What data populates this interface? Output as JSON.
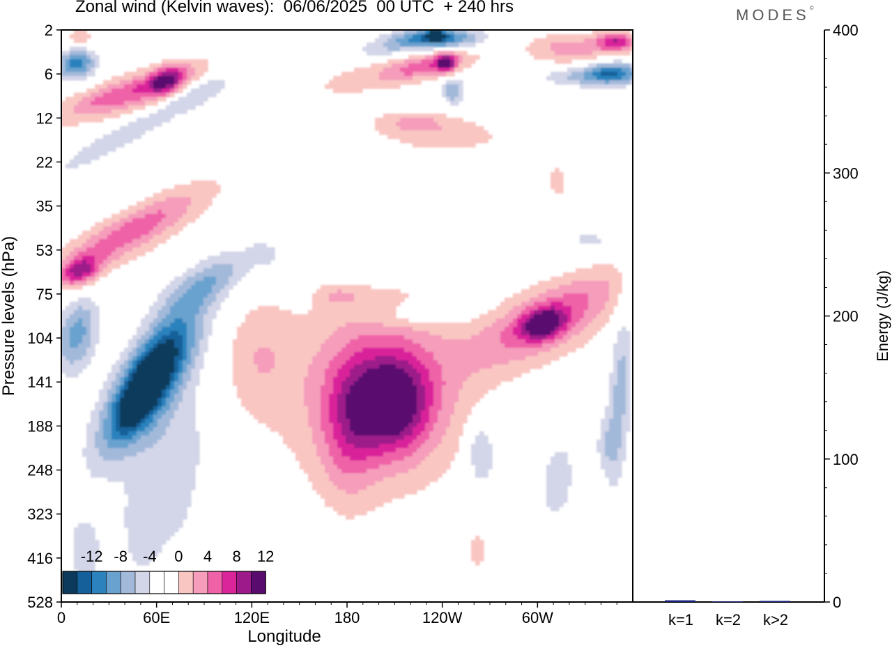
{
  "header": {
    "title": "Zonal wind (Kelvin waves):  06/06/2025  00 UTC  + 240 hrs",
    "brand": "MODES",
    "brand_mark": "©"
  },
  "colorbar": {
    "labels": [
      "-12",
      "-8",
      "-4",
      "0",
      "4",
      "8",
      "12"
    ],
    "colors": [
      "#0b3a5c",
      "#15609a",
      "#2c82bd",
      "#6aa2cf",
      "#a3b9da",
      "#d3d5e8",
      "#ffffff",
      "#ffffff",
      "#f9c6c2",
      "#f59dbb",
      "#ef62a8",
      "#d9249a",
      "#9c1a8a",
      "#5a0b6e"
    ]
  },
  "chart_data": [
    {
      "type": "heatmap",
      "title": "Zonal wind (Kelvin waves):  06/06/2025  00 UTC  + 240 hrs",
      "xlabel": "Longitude",
      "ylabel": "Pressure levels (hPa)",
      "x_ticks": [
        "0",
        "60E",
        "120E",
        "180",
        "120W",
        "60W"
      ],
      "x_tick_values": [
        0,
        60,
        120,
        180,
        240,
        300
      ],
      "xlim": [
        0,
        360
      ],
      "y_ticks": [
        "2",
        "6",
        "12",
        "22",
        "35",
        "53",
        "75",
        "104",
        "141",
        "188",
        "248",
        "323",
        "416",
        "528"
      ],
      "color_levels": [
        -12,
        -8,
        -4,
        0,
        4,
        8,
        12
      ],
      "features": [
        {
          "sign": "negative",
          "center_lon": 58,
          "center_level": "141",
          "peak": -14
        },
        {
          "sign": "negative",
          "center_lon": 10,
          "center_level": "104",
          "peak": -7
        },
        {
          "sign": "negative",
          "center_lon": 5,
          "center_level": "6",
          "peak": -8
        },
        {
          "sign": "negative",
          "center_lon": 235,
          "center_level": "2",
          "peak": -12
        },
        {
          "sign": "negative",
          "center_lon": 350,
          "center_level": "6",
          "peak": -8
        },
        {
          "sign": "positive",
          "center_lon": 210,
          "center_level": "141",
          "peak": 8
        },
        {
          "sign": "positive",
          "center_lon": 305,
          "center_level": "104",
          "peak": 9
        },
        {
          "sign": "positive",
          "center_lon": 15,
          "center_level": "53",
          "peak": 8
        },
        {
          "sign": "positive",
          "center_lon": 60,
          "center_level": "6",
          "peak": 8
        },
        {
          "sign": "positive",
          "center_lon": 240,
          "center_level": "6",
          "peak": 9
        },
        {
          "sign": "positive",
          "center_lon": 350,
          "center_level": "2",
          "peak": 8
        }
      ]
    },
    {
      "type": "bar",
      "categories": [
        "k=1",
        "k=2",
        "k>2"
      ],
      "values": [
        1.2,
        0.4,
        0.8
      ],
      "ylabel": "Energy (J/kg)",
      "ylim": [
        0,
        400
      ],
      "y_ticks": [
        0,
        100,
        200,
        300,
        400
      ],
      "bar_color": "#1a237e"
    }
  ]
}
